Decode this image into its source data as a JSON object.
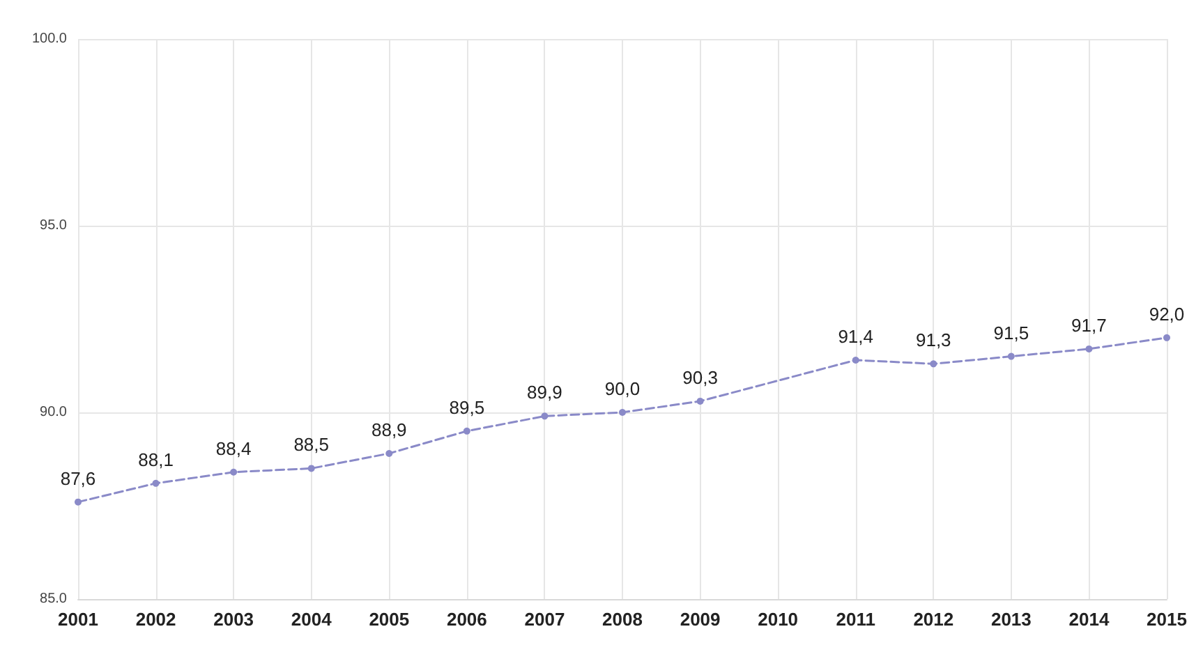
{
  "chart_data": {
    "type": "line",
    "categories": [
      "2001",
      "2002",
      "2003",
      "2004",
      "2005",
      "2006",
      "2007",
      "2008",
      "2009",
      "2010",
      "2011",
      "2012",
      "2013",
      "2014",
      "2015"
    ],
    "series": [
      {
        "color": "#8a8ac8",
        "values": [
          87.6,
          88.1,
          88.4,
          88.5,
          88.9,
          89.5,
          89.9,
          90.0,
          90.3,
          null,
          91.4,
          91.3,
          91.5,
          91.7,
          92.0
        ],
        "value_labels": [
          "87,6",
          "88,1",
          "88,4",
          "88,5",
          "88,9",
          "89,5",
          "89,9",
          "90,0",
          "90,3",
          null,
          "91,4",
          "91,3",
          "91,5",
          "91,7",
          "92,0"
        ]
      }
    ],
    "ylim": [
      85,
      100
    ],
    "yticks": [
      {
        "value": 85,
        "label": "85.0"
      },
      {
        "value": 90,
        "label": "90.0"
      },
      {
        "value": 95,
        "label": "95.0"
      },
      {
        "value": 100,
        "label": "100.0"
      }
    ],
    "grid": true,
    "marker": "circle",
    "line_style": "dashed"
  }
}
